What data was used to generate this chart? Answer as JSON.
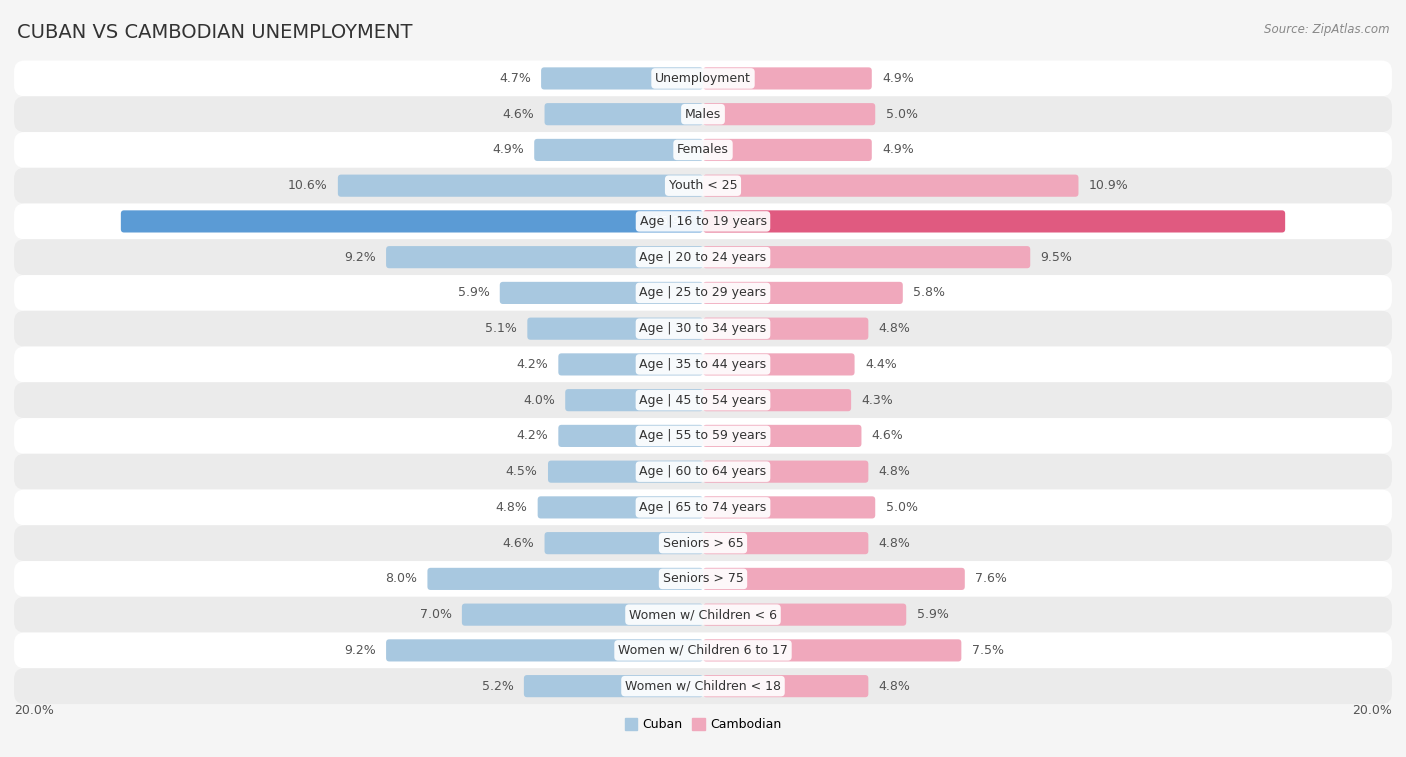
{
  "title": "CUBAN VS CAMBODIAN UNEMPLOYMENT",
  "source": "Source: ZipAtlas.com",
  "categories": [
    "Unemployment",
    "Males",
    "Females",
    "Youth < 25",
    "Age | 16 to 19 years",
    "Age | 20 to 24 years",
    "Age | 25 to 29 years",
    "Age | 30 to 34 years",
    "Age | 35 to 44 years",
    "Age | 45 to 54 years",
    "Age | 55 to 59 years",
    "Age | 60 to 64 years",
    "Age | 65 to 74 years",
    "Seniors > 65",
    "Seniors > 75",
    "Women w/ Children < 6",
    "Women w/ Children 6 to 17",
    "Women w/ Children < 18"
  ],
  "cuban": [
    4.7,
    4.6,
    4.9,
    10.6,
    16.9,
    9.2,
    5.9,
    5.1,
    4.2,
    4.0,
    4.2,
    4.5,
    4.8,
    4.6,
    8.0,
    7.0,
    9.2,
    5.2
  ],
  "cambodian": [
    4.9,
    5.0,
    4.9,
    10.9,
    16.9,
    9.5,
    5.8,
    4.8,
    4.4,
    4.3,
    4.6,
    4.8,
    5.0,
    4.8,
    7.6,
    5.9,
    7.5,
    4.8
  ],
  "cuban_color": "#a8c8e0",
  "cambodian_color": "#f0a8bc",
  "highlight_cuban_color": "#5b9bd5",
  "highlight_cambodian_color": "#e05a80",
  "highlight_row": 4,
  "bar_height": 0.62,
  "bg_color": "#f5f5f5",
  "row_light": "#ffffff",
  "row_dark": "#ebebeb",
  "max_val": 20.0,
  "title_fontsize": 14,
  "label_fontsize": 9,
  "cat_fontsize": 9,
  "tick_fontsize": 9,
  "source_fontsize": 8.5
}
